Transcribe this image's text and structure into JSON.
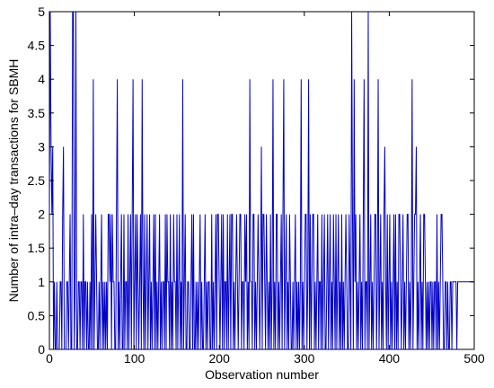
{
  "chart_data": {
    "type": "line",
    "title": "",
    "xlabel": "Observation number",
    "ylabel": "Number of intra–day transactions for SBMH",
    "xlim": [
      0,
      500
    ],
    "ylim": [
      0,
      5
    ],
    "x_ticks": [
      0,
      100,
      200,
      300,
      400,
      500
    ],
    "x_tick_labels": [
      "0",
      "100",
      "200",
      "300",
      "400",
      "500"
    ],
    "y_ticks": [
      0,
      0.5,
      1,
      1.5,
      2,
      2.5,
      3,
      3.5,
      4,
      4.5,
      5
    ],
    "y_tick_labels": [
      "0",
      "0.5",
      "1",
      "1.5",
      "2",
      "2.5",
      "3",
      "3.5",
      "4",
      "4.5",
      "5"
    ],
    "grid": false,
    "line_color": "#0000c8",
    "series": [
      {
        "values": [
          2,
          5,
          3,
          2,
          3,
          0,
          1,
          0,
          0,
          1,
          0,
          0,
          0,
          1,
          1,
          0,
          2,
          3,
          0,
          0,
          0,
          1,
          1,
          0,
          1,
          2,
          0,
          0,
          5,
          5,
          0,
          1,
          5,
          0,
          0,
          1,
          1,
          0,
          1,
          1,
          0,
          2,
          0,
          1,
          1,
          0,
          1,
          0,
          0,
          1,
          0,
          2,
          0,
          4,
          0,
          1,
          2,
          1,
          0,
          0,
          1,
          0,
          1,
          2,
          0,
          1,
          0,
          1,
          0,
          1,
          0,
          2,
          2,
          1,
          2,
          0,
          2,
          1,
          1,
          0,
          0,
          2,
          4,
          0,
          1,
          0,
          1,
          2,
          0,
          0,
          2,
          0,
          1,
          1,
          0,
          2,
          0,
          1,
          2,
          0,
          2,
          4,
          0,
          1,
          2,
          0,
          2,
          1,
          0,
          1,
          2,
          0,
          4,
          1,
          0,
          2,
          0,
          1,
          2,
          0,
          1,
          2,
          0,
          1,
          0,
          1,
          2,
          0,
          2,
          0,
          1,
          0,
          1,
          2,
          0,
          1,
          0,
          1,
          1,
          0,
          2,
          0,
          2,
          1,
          1,
          0,
          2,
          0,
          1,
          0,
          2,
          1,
          1,
          0,
          2,
          0,
          1,
          2,
          0,
          1,
          0,
          4,
          0,
          1,
          2,
          0,
          0,
          1,
          1,
          0,
          0,
          1,
          2,
          0,
          2,
          0,
          0,
          1,
          0,
          1,
          0,
          1,
          2,
          0,
          1,
          0,
          0,
          1,
          2,
          0,
          1,
          0,
          1,
          1,
          0,
          0,
          2,
          0,
          1,
          0,
          1,
          2,
          0,
          2,
          2,
          1,
          0,
          1,
          2,
          0,
          2,
          0,
          1,
          1,
          0,
          2,
          0,
          1,
          2,
          0,
          2,
          2,
          0,
          1,
          0,
          1,
          2,
          1,
          0,
          1,
          2,
          2,
          0,
          1,
          1,
          0,
          2,
          1,
          2,
          0,
          1,
          0,
          4,
          1,
          1,
          0,
          2,
          2,
          0,
          1,
          0,
          1,
          2,
          1,
          0,
          1,
          3,
          0,
          2,
          2,
          1,
          0,
          2,
          1,
          0,
          1,
          0,
          2,
          0,
          1,
          4,
          0,
          1,
          0,
          2,
          2,
          0,
          1,
          0,
          1,
          2,
          0,
          2,
          4,
          0,
          1,
          2,
          0,
          1,
          0,
          2,
          1,
          0,
          0,
          1,
          0,
          1,
          2,
          0,
          1,
          0,
          1,
          0,
          1,
          4,
          0,
          1,
          0,
          1,
          2,
          2,
          0,
          1,
          4,
          0,
          2,
          0,
          1,
          2,
          2,
          0,
          1,
          0,
          1,
          2,
          0,
          1,
          1,
          0,
          2,
          0,
          1,
          2,
          0,
          0,
          1,
          2,
          0,
          1,
          2,
          0,
          1,
          0,
          2,
          1,
          0,
          2,
          0,
          1,
          2,
          0,
          1,
          0,
          2,
          0,
          1,
          0,
          1,
          2,
          1,
          0,
          0,
          2,
          1,
          0,
          5,
          2,
          0,
          4,
          1,
          2,
          0,
          1,
          0,
          1,
          2,
          0,
          1,
          0,
          2,
          4,
          0,
          1,
          1,
          0,
          5,
          0,
          1,
          2,
          0,
          1,
          0,
          1,
          2,
          2,
          0,
          1,
          4,
          0,
          1,
          2,
          0,
          1,
          0,
          2,
          3,
          1,
          0,
          2,
          0,
          1,
          2,
          0,
          1,
          0,
          1,
          2,
          0,
          2,
          0,
          1,
          0,
          2,
          2,
          1,
          0,
          1,
          2,
          0,
          1,
          0,
          1,
          2,
          2,
          0,
          1,
          0,
          1,
          4,
          0,
          1,
          2,
          2,
          3,
          0,
          1,
          0,
          1,
          2,
          0,
          1,
          0,
          2,
          2,
          1,
          0,
          1,
          0,
          1,
          0,
          1,
          1,
          0,
          1,
          0,
          1,
          1,
          0,
          2,
          0,
          1,
          0,
          1,
          2,
          2,
          1,
          0,
          0,
          1,
          1,
          0,
          1,
          0,
          0,
          1,
          1,
          0,
          1,
          1,
          1,
          1,
          1,
          0,
          1,
          1,
          1,
          1,
          1,
          1,
          1,
          1,
          1,
          1,
          1,
          1,
          1,
          1,
          1,
          1,
          1,
          1,
          1,
          1,
          1
        ]
      }
    ]
  }
}
